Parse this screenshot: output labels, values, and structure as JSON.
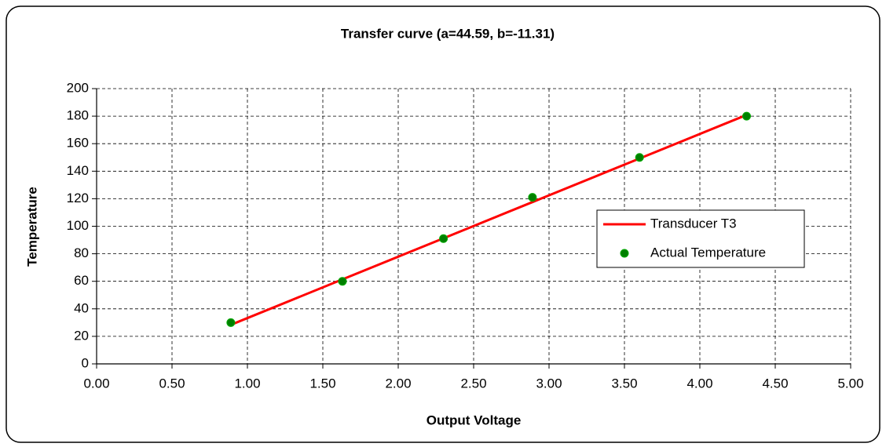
{
  "chart_data": {
    "type": "scatter",
    "title": "Transfer curve (a=44.59, b=-11.31)",
    "x_label": "Output Voltage",
    "y_label": "Temperature",
    "x": [
      0.89,
      1.63,
      2.3,
      2.89,
      3.6,
      4.31
    ],
    "series": [
      {
        "name": "Transducer T3",
        "color": "#ff0000",
        "kind": "line",
        "values": [
          28.38,
          61.37,
          91.25,
          117.56,
          149.21,
          180.87
        ]
      },
      {
        "name": "Actual Temperature",
        "color": "#008000",
        "kind": "markers",
        "values": [
          30,
          60,
          91,
          121,
          150,
          180
        ]
      }
    ],
    "xlim": [
      0,
      5
    ],
    "ylim": [
      0,
      200
    ],
    "xticks": [
      {
        "value": 0,
        "label": "0.00"
      },
      {
        "value": 0.5,
        "label": "0.50"
      },
      {
        "value": 1,
        "label": "1.00"
      },
      {
        "value": 1.5,
        "label": "1.50"
      },
      {
        "value": 2,
        "label": "2.00"
      },
      {
        "value": 2.5,
        "label": "2.50"
      },
      {
        "value": 3,
        "label": "3.00"
      },
      {
        "value": 3.5,
        "label": "3.50"
      },
      {
        "value": 4,
        "label": "4.00"
      },
      {
        "value": 4.5,
        "label": "4.50"
      },
      {
        "value": 5,
        "label": "5.00"
      }
    ],
    "yticks": [
      0,
      20,
      40,
      60,
      80,
      100,
      120,
      140,
      160,
      180,
      200
    ],
    "grid": true,
    "legend": "right"
  }
}
